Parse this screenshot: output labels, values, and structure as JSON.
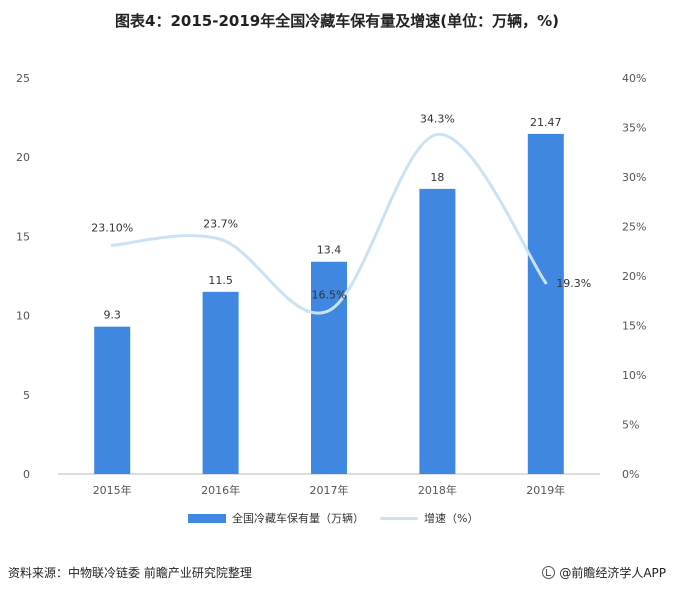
{
  "title": "图表4：2015-2019年全国冷藏车保有量及增速(单位：万辆，%)",
  "colors": {
    "bar": "#3f87e0",
    "line": "#c9e2f6",
    "axis_text": "#555555",
    "axis_line": "#bbbbbb"
  },
  "chart_data": {
    "type": "bar",
    "categories": [
      "2015年",
      "2016年",
      "2017年",
      "2018年",
      "2019年"
    ],
    "series": [
      {
        "name": "全国冷藏车保有量（万辆）",
        "type": "bar",
        "axis": "left",
        "values": [
          9.3,
          11.5,
          13.4,
          18,
          21.47
        ],
        "labels": [
          "9.3",
          "11.5",
          "13.4",
          "18",
          "21.47"
        ]
      },
      {
        "name": "增速（%）",
        "type": "line",
        "axis": "right",
        "values": [
          23.1,
          23.7,
          16.5,
          34.3,
          19.3
        ],
        "labels": [
          "23.10%",
          "23.7%",
          "16.5%",
          "34.3%",
          "19.3%"
        ]
      }
    ],
    "y_left": {
      "ylim": [
        0,
        25
      ],
      "ticks": [
        "0",
        "5",
        "10",
        "15",
        "20",
        "25"
      ]
    },
    "y_right": {
      "ylim": [
        0,
        40
      ],
      "ticks": [
        "0%",
        "5%",
        "10%",
        "15%",
        "20%",
        "25%",
        "30%",
        "35%",
        "40%"
      ]
    },
    "legend_position": "bottom",
    "grid": false
  },
  "legend": {
    "bar_label": "全国冷藏车保有量（万辆）",
    "line_label": "增速（%）"
  },
  "footer": {
    "source": "资料来源：中物联冷链委  前瞻产业研究院整理",
    "brand": "@前瞻经济学人APP"
  }
}
